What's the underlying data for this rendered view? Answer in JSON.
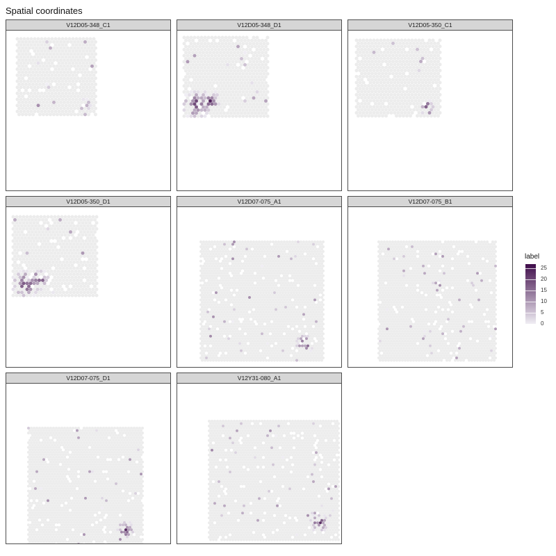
{
  "title": "Spatial coordinates",
  "chart_data": {
    "type": "scatter",
    "subtype": "spatial facet map (hex spots)",
    "title": "Spatial coordinates",
    "color_scale": {
      "label": "label",
      "low_color": "#f0eef4",
      "high_color": "#3f0c4a",
      "limits": [
        0,
        27
      ],
      "ticks": [
        "0",
        "5",
        "10",
        "15",
        "20",
        "25"
      ]
    },
    "facets": [
      {
        "name": "V12D05-348_C1",
        "hotspot_level": "low"
      },
      {
        "name": "V12D05-348_D1",
        "hotspot_level": "high"
      },
      {
        "name": "V12D05-350_C1",
        "hotspot_level": "low"
      },
      {
        "name": "V12D05-350_D1",
        "hotspot_level": "high"
      },
      {
        "name": "V12D07-075_A1",
        "hotspot_level": "low"
      },
      {
        "name": "V12D07-075_B1",
        "hotspot_level": "very low"
      },
      {
        "name": "V12D07-075_D1",
        "hotspot_level": "low"
      },
      {
        "name": "V12Y31-080_A1",
        "hotspot_level": "low"
      }
    ],
    "grid": false,
    "legend_position": "right"
  }
}
